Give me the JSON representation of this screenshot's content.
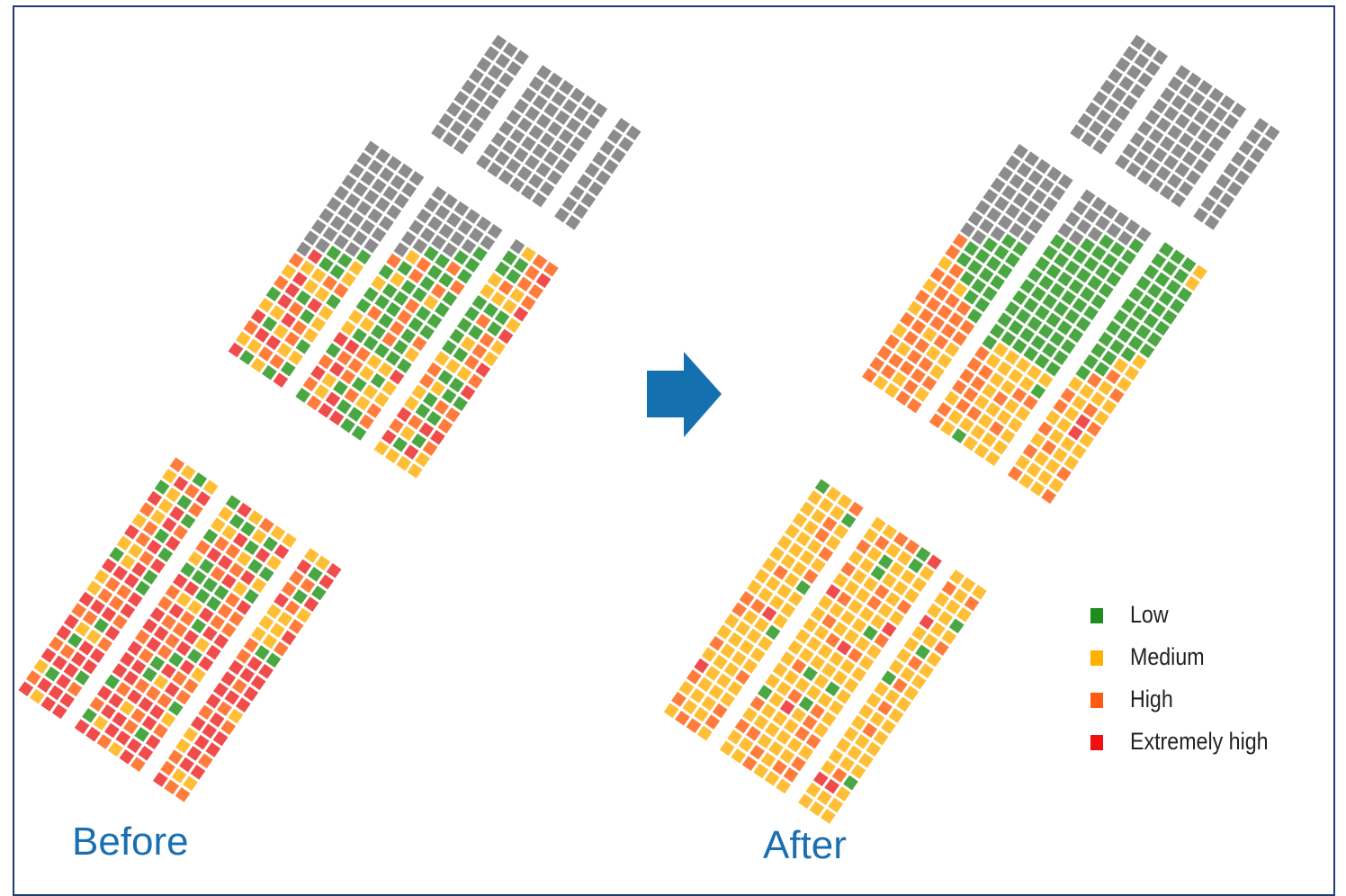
{
  "captions": {
    "before": "Before",
    "after": "After"
  },
  "legend": [
    {
      "label": "Low",
      "color": "#1e8c1e"
    },
    {
      "label": "Medium",
      "color": "#ffb000"
    },
    {
      "label": "High",
      "color": "#ff5a10"
    },
    {
      "label": "Extremely high",
      "color": "#f01010"
    }
  ],
  "colors": {
    "inactive_gray": "#8c8c8c",
    "low_cell": "#4aa742",
    "medium_cell": "#ffbe35",
    "high_cell": "#ff7c3c",
    "extreme_cell": "#f04c4c",
    "arrow": "#1570b0",
    "frame_border": "#1f3b73"
  }
}
